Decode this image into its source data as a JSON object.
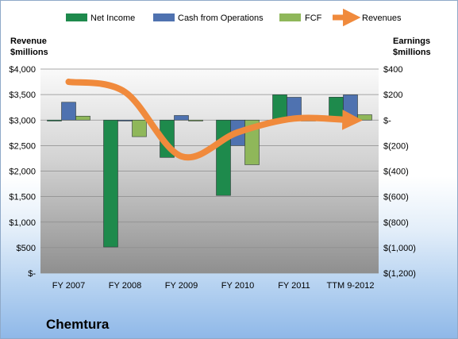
{
  "company": "Chemtura",
  "chart_data": {
    "type": "bar",
    "categories": [
      "FY 2007",
      "FY 2008",
      "FY 2009",
      "FY 2010",
      "FY 2011",
      "TTM 9-2012"
    ],
    "left_axis": {
      "label_line1": "Revenue",
      "label_line2": "$millions",
      "range": [
        0,
        4000
      ],
      "ticks": [
        {
          "v": 4000,
          "t": "$4,000"
        },
        {
          "v": 3500,
          "t": "$3,500"
        },
        {
          "v": 3000,
          "t": "$3,000"
        },
        {
          "v": 2500,
          "t": "$2,500"
        },
        {
          "v": 2000,
          "t": "$2,000"
        },
        {
          "v": 1500,
          "t": "$1,500"
        },
        {
          "v": 1000,
          "t": "$1,000"
        },
        {
          "v": 500,
          "t": "$500"
        },
        {
          "v": 0,
          "t": "$-"
        }
      ]
    },
    "right_axis": {
      "label_line1": "Earnings",
      "label_line2": "$millions",
      "range": [
        -1200,
        400
      ],
      "ticks": [
        {
          "v": 400,
          "t": "$400"
        },
        {
          "v": 200,
          "t": "$200"
        },
        {
          "v": 0,
          "t": "$-"
        },
        {
          "v": -200,
          "t": "$(200)"
        },
        {
          "v": -400,
          "t": "$(400)"
        },
        {
          "v": -600,
          "t": "$(600)"
        },
        {
          "v": -800,
          "t": "$(800)"
        },
        {
          "v": -1000,
          "t": "$(1,000)"
        },
        {
          "v": -1200,
          "t": "$(1,200)"
        }
      ]
    },
    "series": [
      {
        "name": "Net Income",
        "type": "bar",
        "axis": "right",
        "color": "#1e8a4c",
        "values": [
          -3,
          -995,
          -293,
          -591,
          199,
          180
        ]
      },
      {
        "name": "Cash from Operations",
        "type": "bar",
        "axis": "right",
        "color": "#4f72b0",
        "values": [
          140,
          0,
          36,
          -200,
          179,
          198
        ]
      },
      {
        "name": "FCF",
        "type": "bar",
        "axis": "right",
        "color": "#8fb75a",
        "values": [
          31,
          -130,
          0,
          -350,
          0,
          42
        ]
      },
      {
        "name": "Revenues",
        "type": "line",
        "axis": "left",
        "color": "#f08a3c",
        "values": [
          3750,
          3550,
          2290,
          2760,
          3030,
          3000
        ]
      }
    ],
    "legend_position": "top"
  }
}
